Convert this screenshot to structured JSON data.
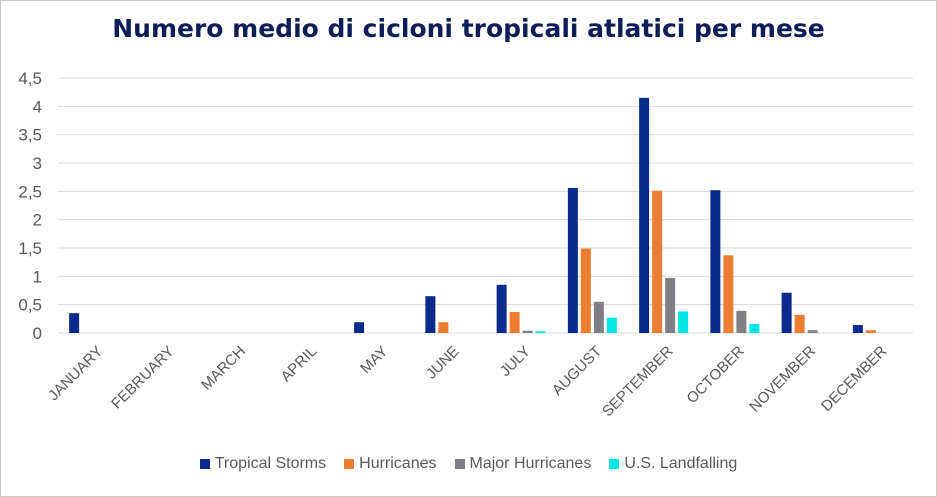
{
  "chart_data": {
    "type": "bar",
    "title": "Numero medio di cicloni tropicali atlatici per mese",
    "xlabel": "",
    "ylabel": "",
    "ylim": [
      0,
      4.5
    ],
    "yticks": [
      "0",
      "0,5",
      "1",
      "1,5",
      "2",
      "2,5",
      "3",
      "3,5",
      "4",
      "4,5"
    ],
    "grid": true,
    "legend_position": "bottom",
    "categories": [
      "JANUARY",
      "FEBRUARY",
      "MARCH",
      "APRIL",
      "MAY",
      "JUNE",
      "JULY",
      "AUGUST",
      "SEPTEMBER",
      "OCTOBER",
      "NOVEMBER",
      "DECEMBER"
    ],
    "series": [
      {
        "name": "Tropical Storms",
        "color": "#0a2a8c",
        "values": [
          0.35,
          0,
          0,
          0,
          0.19,
          0.65,
          0.85,
          2.56,
          4.15,
          2.52,
          0.71,
          0.14
        ]
      },
      {
        "name": "Hurricanes",
        "color": "#ed7d31",
        "values": [
          0,
          0,
          0,
          0,
          0,
          0.19,
          0.37,
          1.49,
          2.51,
          1.37,
          0.32,
          0.05
        ]
      },
      {
        "name": "Major Hurricanes",
        "color": "#7f7f85",
        "values": [
          0,
          0,
          0,
          0,
          0,
          0,
          0.04,
          0.55,
          0.97,
          0.39,
          0.05,
          0
        ]
      },
      {
        "name": "U.S. Landfalling",
        "color": "#00e5e5",
        "values": [
          0,
          0,
          0,
          0,
          0,
          0,
          0.03,
          0.27,
          0.38,
          0.16,
          0,
          0
        ]
      }
    ]
  }
}
